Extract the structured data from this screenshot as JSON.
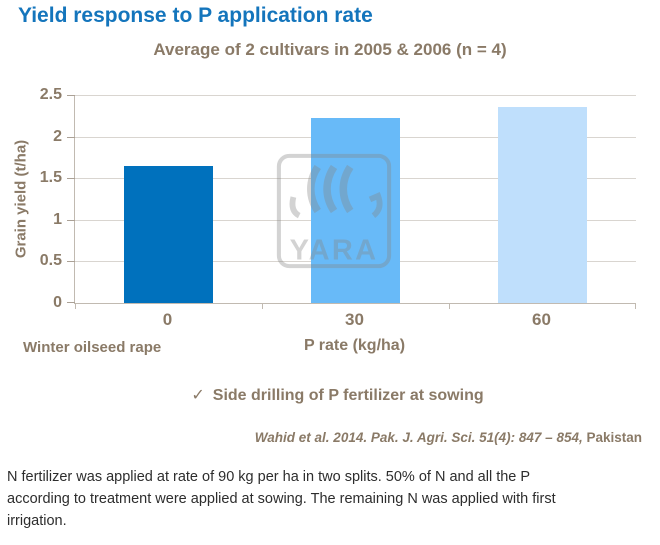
{
  "page": {
    "title": "Yield response to P application rate",
    "subtitle": "Average of 2 cultivars in 2005 & 2006 (n = 4)",
    "series_label": "Winter oilseed rape",
    "check_glyph": "✓",
    "check_note": "Side drilling of P fertilizer at sowing",
    "citation_italic": "Wahid et al. 2014. Pak. J. Agri. Sci. 51(4): 847 – 854,",
    "citation_regular": " Pakistan",
    "footer_paragraph": "N fertilizer was applied at rate of 90 kg per ha in two splits. 50% of N and all the P according to treatment were applied at sowing. The remaining N was applied with first irrigation.",
    "watermark_text": "YARA"
  },
  "colors": {
    "title_blue": "#1475bc",
    "brown_text": "#8a7a67",
    "gridline": "#d9d5d0",
    "axis_line": "#c1bab1",
    "body_text": "#2d2d2d",
    "watermark_gray": "#868686"
  },
  "chart_data": {
    "type": "bar",
    "title": "Average of 2 cultivars in 2005 & 2006 (n = 4)",
    "categories": [
      "0",
      "30",
      "60"
    ],
    "values": [
      1.65,
      2.22,
      2.35
    ],
    "bar_colors": [
      "#0071bd",
      "#68baf8",
      "#bfdffc"
    ],
    "xlabel": "P rate (kg/ha)",
    "ylabel": "Grain yield (t/ha)",
    "ylim": [
      0,
      2.5
    ],
    "yticks": [
      "0",
      "0.5",
      "1",
      "1.5",
      "2",
      "2.5"
    ],
    "grid": true,
    "legend": "none",
    "series_note": "Winter oilseed rape"
  }
}
